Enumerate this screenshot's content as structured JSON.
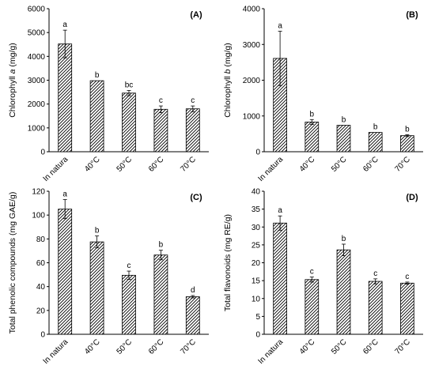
{
  "chart_data": [
    {
      "type": "bar",
      "panel_label": "(A)",
      "ylabel_prefix": "Chlorophyll ",
      "ylabel_italic": "a",
      "ylabel_suffix": " (mg/g)",
      "categories": [
        "In natura",
        "40°C",
        "50°C",
        "60°C",
        "70°C"
      ],
      "values": [
        4520,
        2980,
        2460,
        1780,
        1800
      ],
      "errors": [
        580,
        0,
        110,
        140,
        120
      ],
      "letters": [
        "a",
        "b",
        "bc",
        "c",
        "c"
      ],
      "ylim": [
        0,
        6000
      ],
      "yticks": [
        0,
        1000,
        2000,
        3000,
        4000,
        5000,
        6000
      ]
    },
    {
      "type": "bar",
      "panel_label": "(B)",
      "ylabel_prefix": "Chlorophyll ",
      "ylabel_italic": "b",
      "ylabel_suffix": " (mg/g)",
      "categories": [
        "In natura",
        "40°C",
        "50°C",
        "60°C",
        "70°C"
      ],
      "values": [
        2610,
        830,
        740,
        540,
        450
      ],
      "errors": [
        760,
        70,
        0,
        0,
        25
      ],
      "letters": [
        "a",
        "b",
        "b",
        "b",
        "b"
      ],
      "ylim": [
        0,
        4000
      ],
      "yticks": [
        0,
        1000,
        2000,
        3000,
        4000
      ]
    },
    {
      "type": "bar",
      "panel_label": "(C)",
      "ylabel_prefix": "Total phenolic compounds (mg GAE/g)",
      "ylabel_italic": "",
      "ylabel_suffix": "",
      "categories": [
        "In natura",
        "40°C",
        "50°C",
        "60°C",
        "70°C"
      ],
      "values": [
        105,
        77.5,
        49.5,
        66.5,
        31.5
      ],
      "errors": [
        8,
        5,
        3.5,
        4,
        1
      ],
      "letters": [
        "a",
        "b",
        "c",
        "b",
        "d"
      ],
      "ylim": [
        0,
        120
      ],
      "yticks": [
        0,
        20,
        40,
        60,
        80,
        100,
        120
      ]
    },
    {
      "type": "bar",
      "panel_label": "(D)",
      "ylabel_prefix": "Total flavonoids  (mg RE/g)",
      "ylabel_italic": "",
      "ylabel_suffix": "",
      "categories": [
        "In natura",
        "40°C",
        "50°C",
        "60°C",
        "70°C"
      ],
      "values": [
        31.1,
        15.3,
        23.6,
        14.8,
        14.3
      ],
      "errors": [
        2,
        0.7,
        1.6,
        0.7,
        0.3
      ],
      "letters": [
        "a",
        "c",
        "b",
        "c",
        "c"
      ],
      "ylim": [
        0,
        40
      ],
      "yticks": [
        0,
        5,
        10,
        15,
        20,
        25,
        30,
        35,
        40
      ]
    }
  ]
}
